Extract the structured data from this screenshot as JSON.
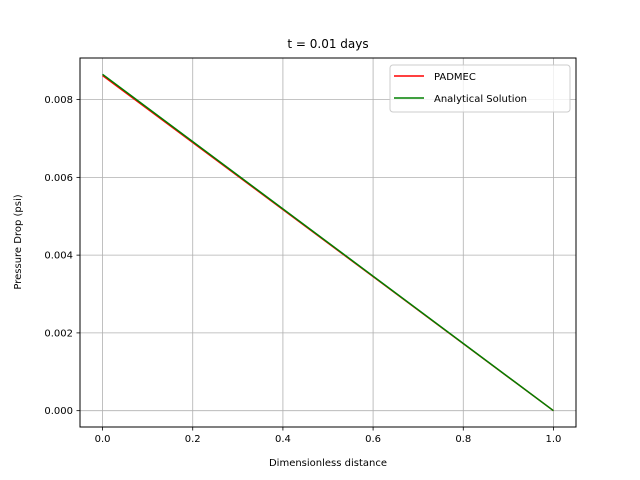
{
  "chart_data": {
    "type": "line",
    "title": "t = 0.01 days",
    "xlabel": "Dimensionless distance",
    "ylabel": "Pressure Drop (psi)",
    "xlim": [
      -0.05,
      1.05
    ],
    "ylim": [
      -0.00042,
      0.00907
    ],
    "xticks": [
      0.0,
      0.2,
      0.4,
      0.6,
      0.8,
      1.0
    ],
    "xtick_labels": [
      "0.0",
      "0.2",
      "0.4",
      "0.6",
      "0.8",
      "1.0"
    ],
    "yticks": [
      0.0,
      0.002,
      0.004,
      0.006,
      0.008
    ],
    "ytick_labels": [
      "0.000",
      "0.002",
      "0.004",
      "0.006",
      "0.008"
    ],
    "grid": true,
    "legend_position": "top-right",
    "series": [
      {
        "name": "PADMEC",
        "color": "#ff0000",
        "x": [
          0.0,
          1.0
        ],
        "y": [
          0.00862,
          0.0
        ]
      },
      {
        "name": "Analytical Solution",
        "color": "#008000",
        "x": [
          0.0,
          1.0
        ],
        "y": [
          0.00865,
          0.0
        ]
      }
    ]
  }
}
